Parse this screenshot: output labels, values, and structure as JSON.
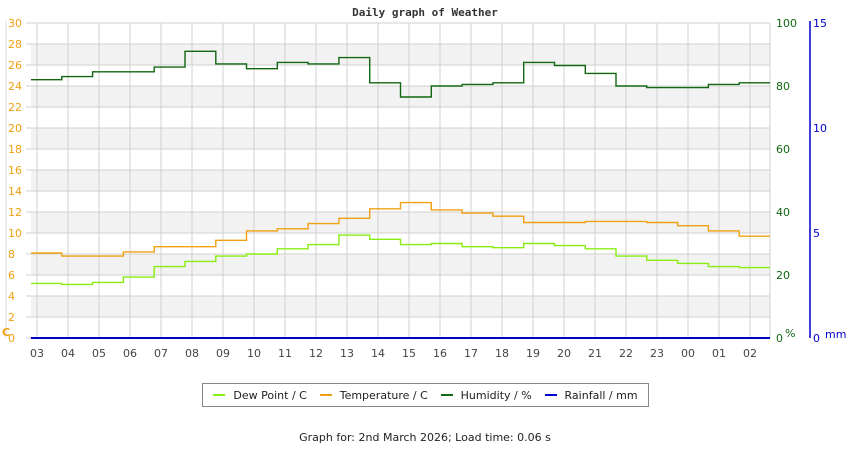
{
  "title": "Daily graph of Weather",
  "footer": "Graph for: 2nd March 2026; Load time: 0.06 s",
  "colors": {
    "dew_point": "#88ee11",
    "temperature": "#f0a010",
    "humidity": "#116611",
    "rainfall": "#0000cc",
    "temp_axis": "#f0a010",
    "humidity_axis": "#116611",
    "rain_axis": "#0000cc",
    "grid": "#d0d0d0",
    "band": "#f2f2f2"
  },
  "legend": [
    {
      "label": "Dew Point / C",
      "color": "#88ee11"
    },
    {
      "label": "Temperature / C",
      "color": "#f0a010"
    },
    {
      "label": "Humidity / %",
      "color": "#116611"
    },
    {
      "label": "Rainfall / mm",
      "color": "#0000cc"
    }
  ],
  "axes": {
    "left_unit": "C",
    "left_ticks": [
      "0",
      "2",
      "4",
      "6",
      "8",
      "10",
      "12",
      "14",
      "16",
      "18",
      "20",
      "22",
      "24",
      "26",
      "28",
      "30"
    ],
    "right1_unit": "%",
    "right1_ticks": [
      "0",
      "20",
      "40",
      "60",
      "80",
      "100"
    ],
    "right2_unit": "mm",
    "right2_ticks": [
      "0",
      "5",
      "10",
      "15"
    ],
    "x_ticks": [
      "03",
      "04",
      "05",
      "06",
      "07",
      "08",
      "09",
      "10",
      "11",
      "12",
      "13",
      "14",
      "15",
      "16",
      "17",
      "18",
      "19",
      "20",
      "21",
      "22",
      "23",
      "00",
      "01",
      "02"
    ]
  },
  "chart_data": {
    "type": "line",
    "title": "Daily graph of Weather",
    "xlabel": "",
    "ylabel": "C",
    "ylim": [
      0,
      30
    ],
    "y2lim_humidity": [
      0,
      100
    ],
    "y3lim_rainfall": [
      0,
      15
    ],
    "grid": true,
    "legend_position": "bottom",
    "x": [
      "03",
      "04",
      "05",
      "06",
      "07",
      "08",
      "09",
      "10",
      "11",
      "12",
      "13",
      "14",
      "15",
      "16",
      "17",
      "18",
      "19",
      "20",
      "21",
      "22",
      "23",
      "00",
      "01",
      "02"
    ],
    "series": [
      {
        "name": "Dew Point / C",
        "axis": "left",
        "values": [
          5.2,
          5.1,
          5.3,
          5.8,
          6.8,
          7.3,
          7.8,
          8.0,
          8.5,
          8.9,
          9.8,
          9.4,
          8.9,
          9.0,
          8.7,
          8.6,
          9.0,
          8.8,
          8.5,
          7.8,
          7.4,
          7.1,
          6.8,
          6.7
        ]
      },
      {
        "name": "Temperature / C",
        "axis": "left",
        "values": [
          8.1,
          7.8,
          7.8,
          8.2,
          8.7,
          8.7,
          9.3,
          10.2,
          10.4,
          10.9,
          11.4,
          12.3,
          12.9,
          12.2,
          11.9,
          11.6,
          11.0,
          11.0,
          11.1,
          11.1,
          11.0,
          10.7,
          10.2,
          9.7
        ]
      },
      {
        "name": "Humidity / %",
        "axis": "right",
        "values": [
          82,
          83,
          84.5,
          84.5,
          86,
          91,
          87,
          85.5,
          87.5,
          87,
          89,
          81,
          76.5,
          80,
          80.5,
          81,
          87.5,
          86.5,
          84,
          80,
          79.5,
          79.5,
          80.5,
          81
        ]
      },
      {
        "name": "Rainfall / mm",
        "axis": "right2",
        "values": [
          0,
          0,
          0,
          0,
          0,
          0,
          0,
          0,
          0,
          0,
          0,
          0,
          0,
          0,
          0,
          0,
          0,
          0,
          0,
          0,
          0,
          0,
          0,
          0
        ]
      }
    ]
  }
}
